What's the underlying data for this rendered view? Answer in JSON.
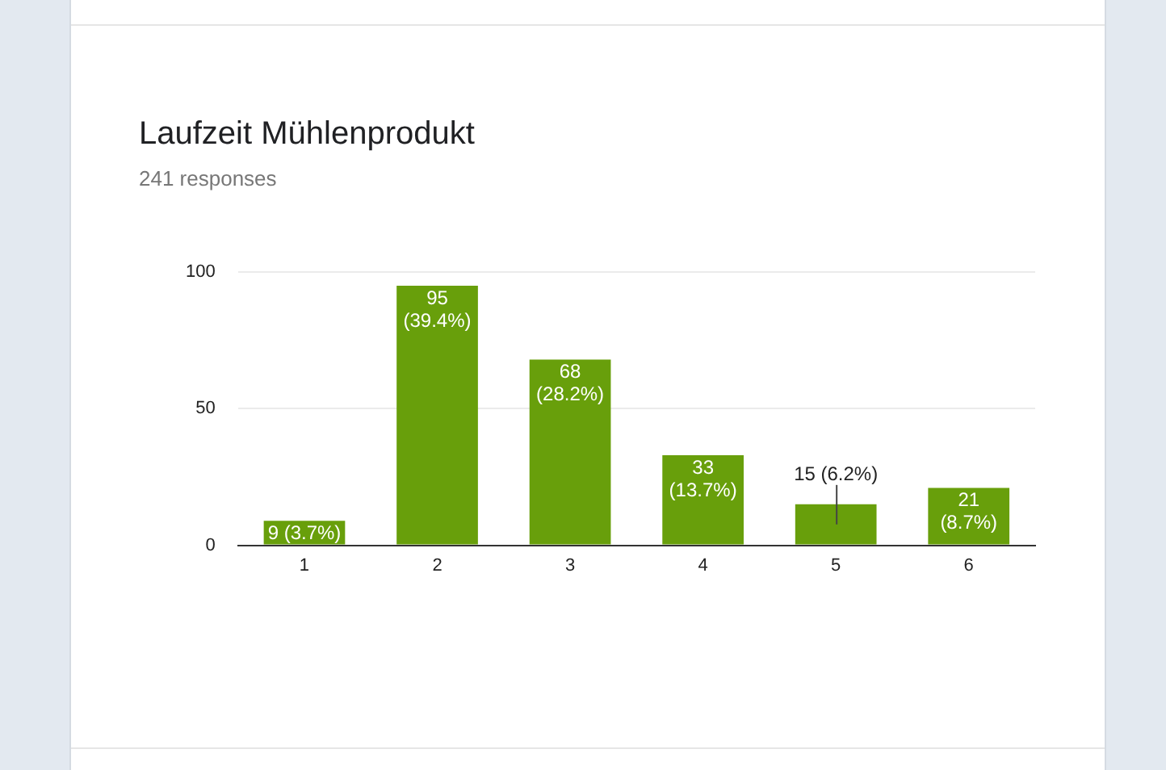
{
  "chart_data": {
    "type": "bar",
    "title": "Laufzeit Mühlenprodukt",
    "subtitle": "241 responses",
    "categories": [
      "1",
      "2",
      "3",
      "4",
      "5",
      "6"
    ],
    "values": [
      9,
      95,
      68,
      33,
      15,
      21
    ],
    "value_labels": [
      "9 (3.7%)",
      "95 (39.4%)",
      "68 (28.2%)",
      "33 (13.7%)",
      "15 (6.2%)",
      "21 (8.7%)"
    ],
    "color": "#689f0b",
    "ylim": [
      0,
      100
    ],
    "yticks": [
      0,
      50,
      100
    ],
    "grid": "y",
    "legend": false
  }
}
